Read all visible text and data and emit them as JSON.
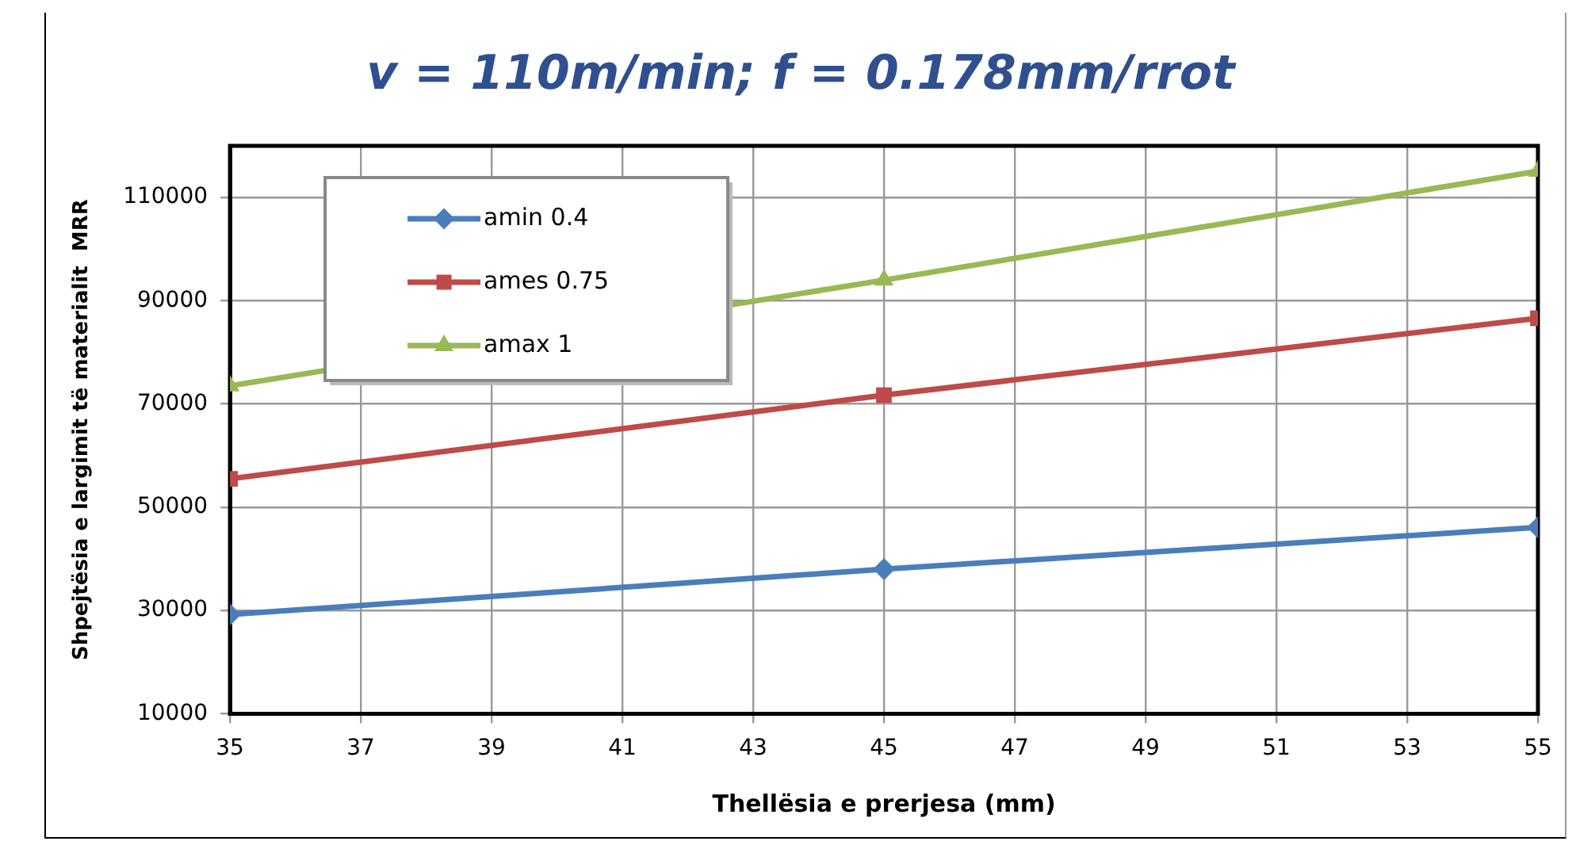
{
  "chart_data": {
    "type": "line",
    "title": "v = 110m/min; f = 0.178mm/rrot",
    "xlabel": "Thellësia e prerjesa (mm)",
    "ylabel": "Shpejtësia e largimit të materialit  MRR",
    "x": [
      35,
      45,
      55
    ],
    "series": [
      {
        "name": "amin 0.4",
        "color": "#4a7ebb",
        "marker": "diamond",
        "values": [
          29200,
          38000,
          46100
        ]
      },
      {
        "name": "ames 0.75",
        "color": "#be4b48",
        "marker": "square",
        "values": [
          55500,
          71700,
          86600
        ]
      },
      {
        "name": "amax 1",
        "color": "#98b954",
        "marker": "triangle",
        "values": [
          73500,
          94000,
          115100
        ]
      }
    ],
    "xlim": [
      35,
      55
    ],
    "xticks": [
      35,
      37,
      39,
      41,
      43,
      45,
      47,
      49,
      51,
      53,
      55
    ],
    "ylim": [
      10000,
      120000
    ],
    "yticks": [
      10000,
      30000,
      50000,
      70000,
      90000,
      110000
    ],
    "grid": true,
    "legend": "top left",
    "line_style": "solid"
  }
}
